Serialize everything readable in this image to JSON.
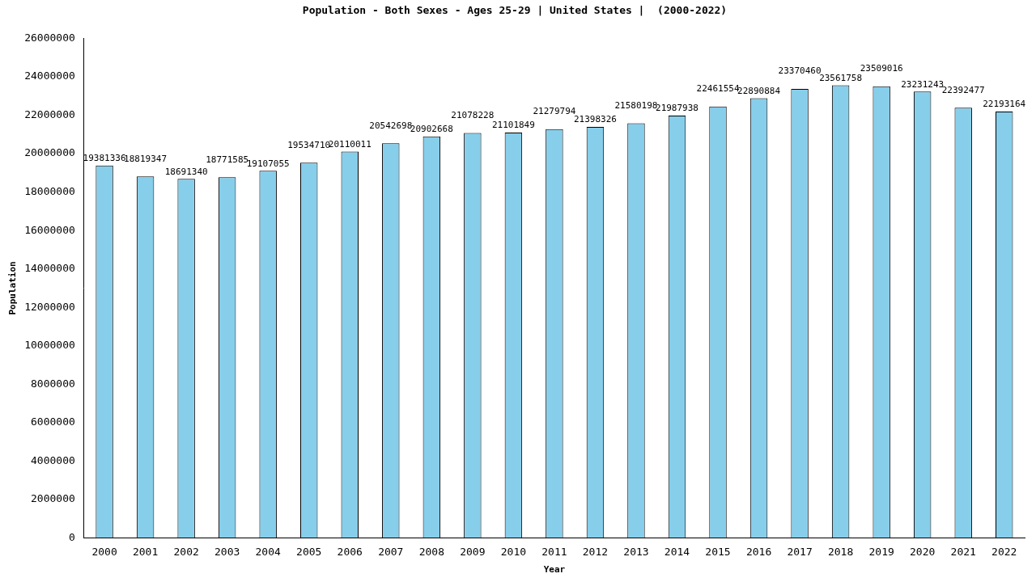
{
  "chart_data": {
    "type": "bar",
    "title": "Population - Both Sexes - Ages 25-29 | United States |  (2000-2022)",
    "x_label": "Year",
    "y_label": "Population",
    "categories": [
      "2000",
      "2001",
      "2002",
      "2003",
      "2004",
      "2005",
      "2006",
      "2007",
      "2008",
      "2009",
      "2010",
      "2011",
      "2012",
      "2013",
      "2014",
      "2015",
      "2016",
      "2017",
      "2018",
      "2019",
      "2020",
      "2021",
      "2022"
    ],
    "values": [
      19381336,
      18819347,
      18691340,
      18771585,
      19107055,
      19534710,
      20110011,
      20542698,
      20902668,
      21078228,
      21101849,
      21279794,
      21398326,
      21580198,
      21987938,
      22461554,
      22890884,
      23370460,
      23561758,
      23509016,
      23231243,
      22392477,
      22193164
    ],
    "color": "#87ceeb",
    "ylim": [
      0,
      26000000
    ],
    "yticks": [
      0,
      2000000,
      4000000,
      6000000,
      8000000,
      10000000,
      12000000,
      14000000,
      16000000,
      18000000,
      20000000,
      22000000,
      24000000,
      26000000
    ],
    "grid": false,
    "data_labels": true
  }
}
